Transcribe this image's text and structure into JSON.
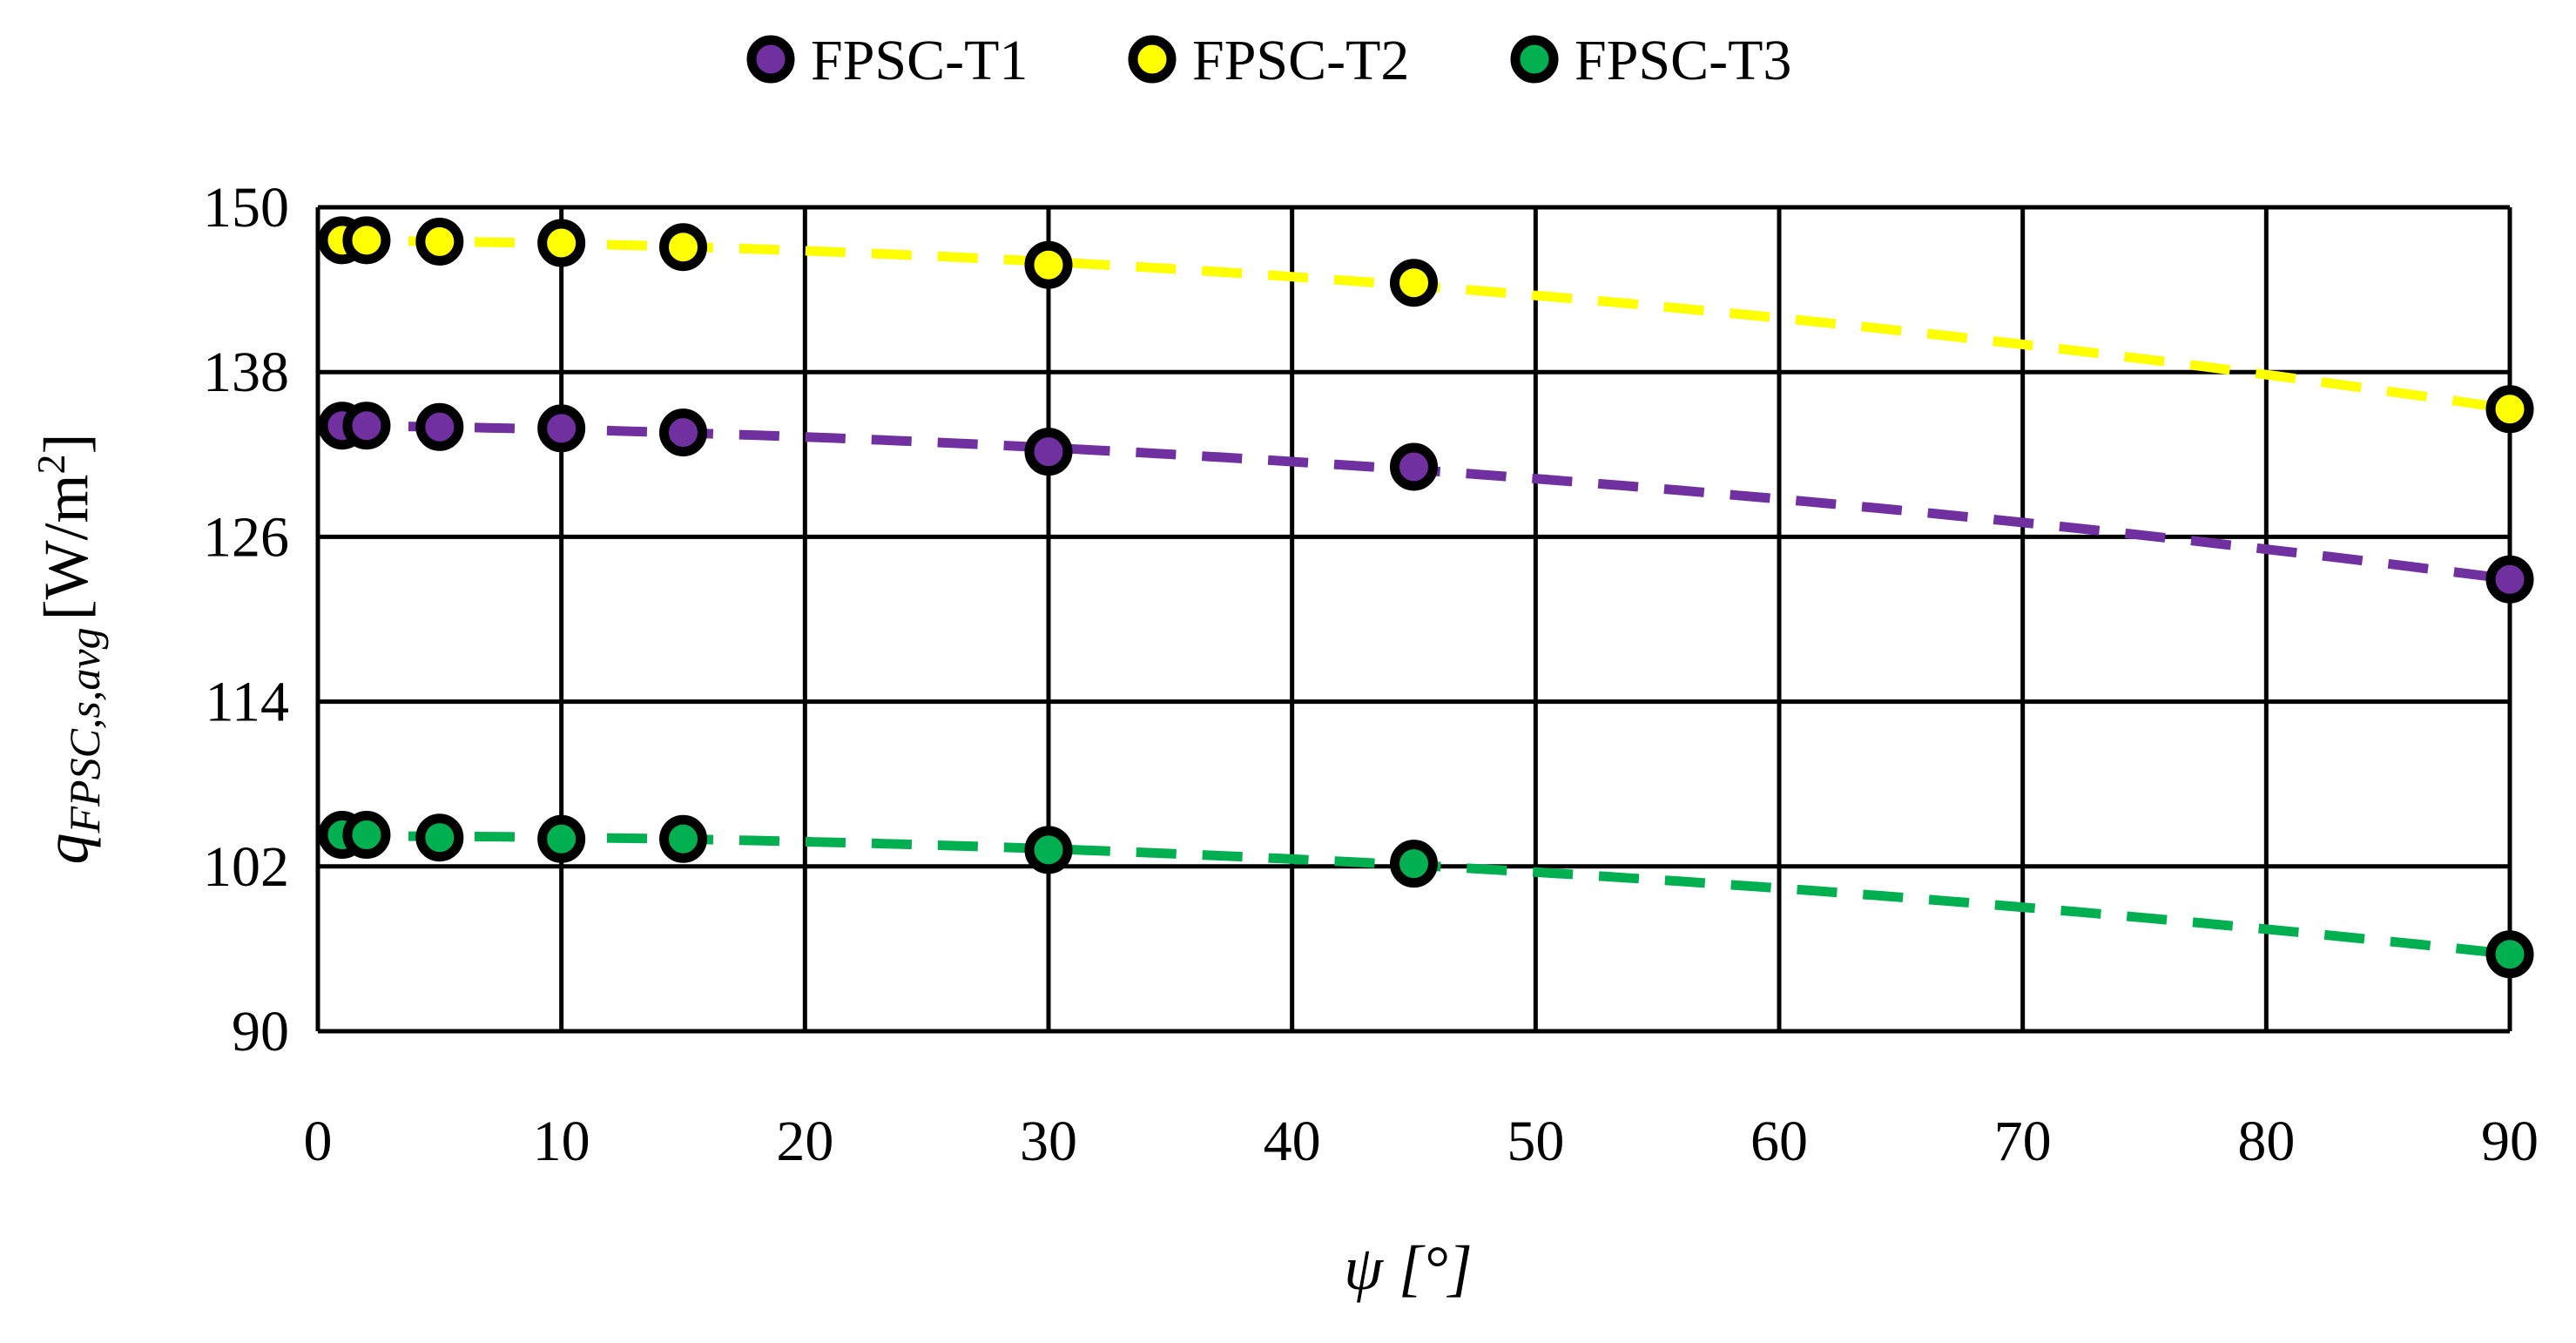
{
  "chart_data": {
    "type": "line",
    "title": "",
    "xlabel": "ψ [°]",
    "ylabel": {
      "symbol": "q",
      "subscript": "FPSC,s,avg",
      "unit_prefix": "[W/m",
      "unit_sup": "2",
      "unit_suffix": "]"
    },
    "xlim": [
      0,
      90
    ],
    "ylim": [
      90,
      150
    ],
    "x_ticks": [
      "0",
      "10",
      "20",
      "30",
      "40",
      "50",
      "60",
      "70",
      "80",
      "90"
    ],
    "y_ticks": [
      "90",
      "102",
      "114",
      "126",
      "138",
      "150"
    ],
    "grid": true,
    "legend_position": "top-center",
    "x": [
      1,
      2,
      5,
      10,
      15,
      30,
      45,
      90
    ],
    "series": [
      {
        "name": "FPSC-T1",
        "color": "#7030A0",
        "values": [
          134.1,
          134.1,
          134.0,
          133.9,
          133.6,
          132.2,
          131.1,
          122.9
        ]
      },
      {
        "name": "FPSC-T2",
        "color": "#FFFF00",
        "values": [
          147.6,
          147.6,
          147.5,
          147.4,
          147.1,
          145.8,
          144.5,
          135.3
        ]
      },
      {
        "name": "FPSC-T3",
        "color": "#00B050",
        "values": [
          104.3,
          104.3,
          104.1,
          104.0,
          104.0,
          103.2,
          102.2,
          95.6
        ]
      }
    ]
  }
}
